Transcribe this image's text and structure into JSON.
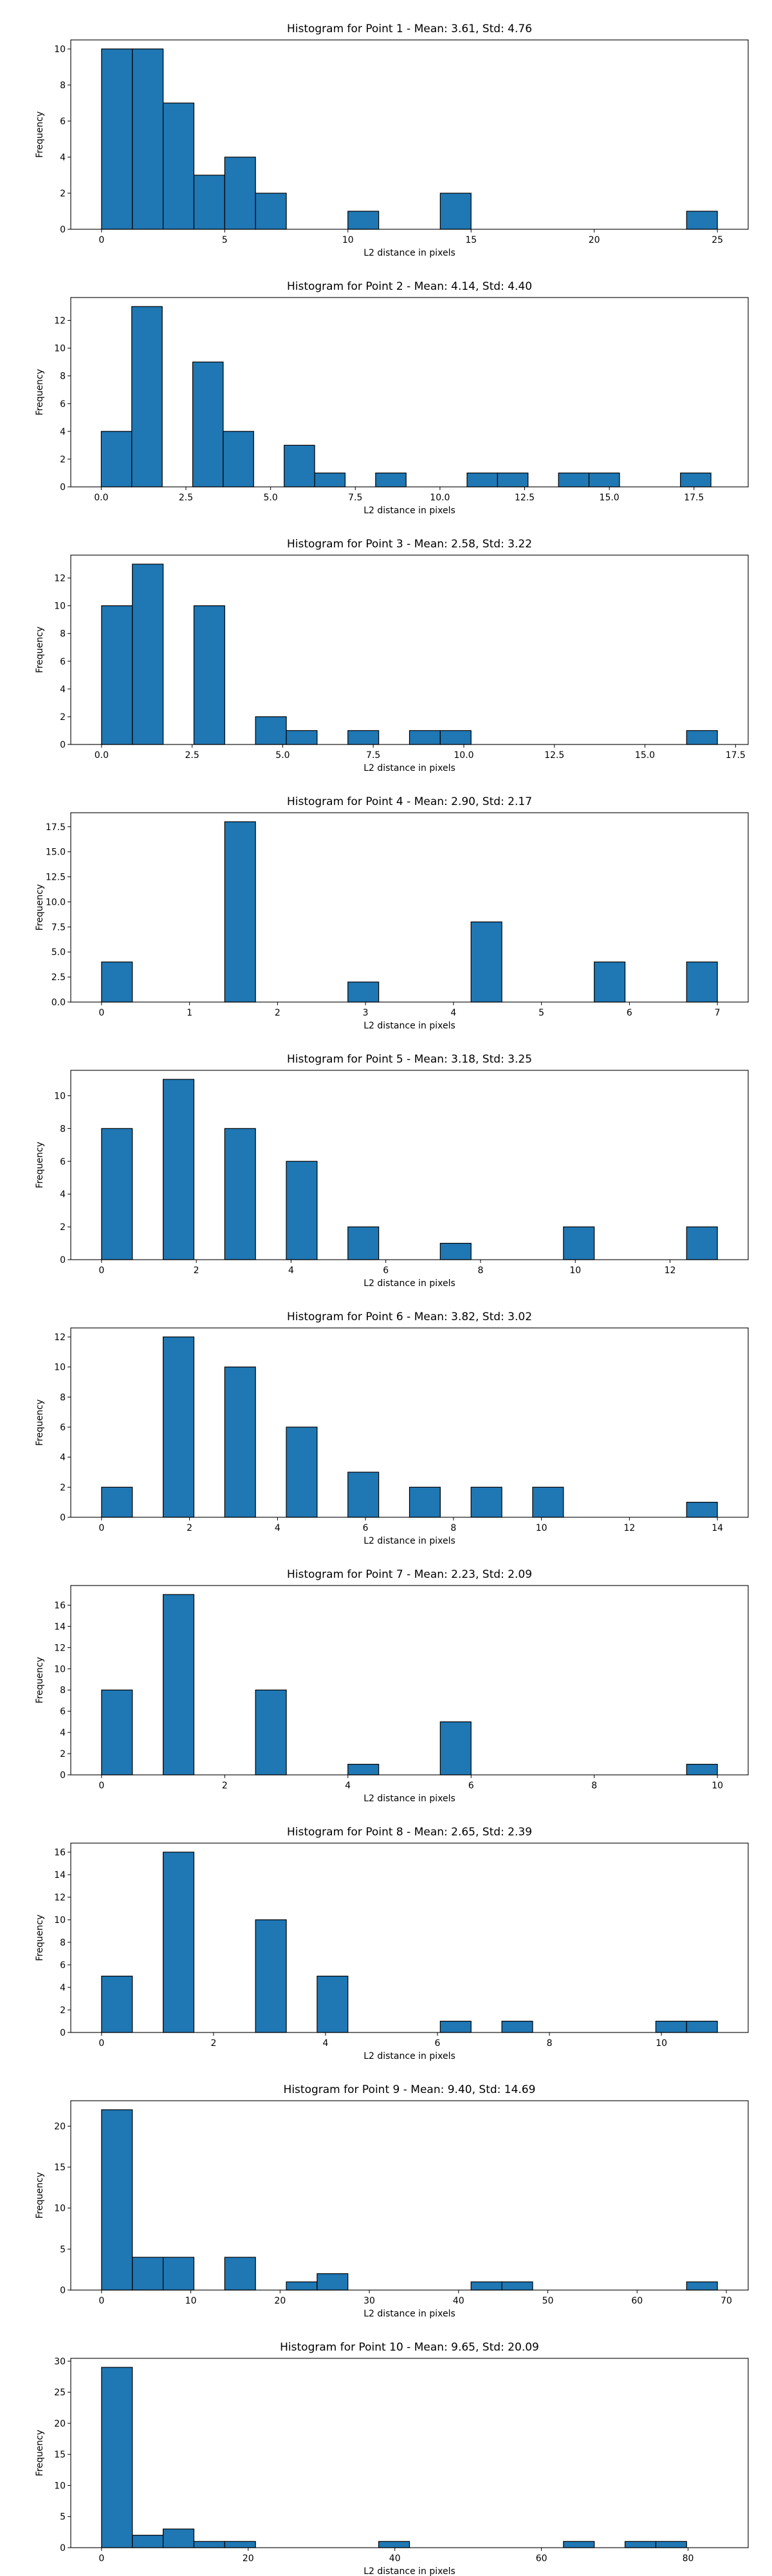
{
  "chart_data": [
    {
      "type": "bar",
      "title": "Histogram for Point 1 - Mean: 3.61, Std: 4.76",
      "xlabel": "L2 distance in pixels",
      "ylabel": "Frequency",
      "xlim": [
        -1.25,
        26.25
      ],
      "ylim": [
        0,
        10.5
      ],
      "xticks": [
        0,
        5,
        10,
        15,
        20,
        25
      ],
      "xtick_labels": [
        "0",
        "5",
        "10",
        "15",
        "20",
        "25"
      ],
      "yticks": [
        0,
        2,
        4,
        6,
        8,
        10
      ],
      "ytick_labels": [
        "0",
        "2",
        "4",
        "6",
        "8",
        "10"
      ],
      "bin_edges": [
        0.0,
        1.25,
        2.5,
        3.75,
        5.0,
        6.25,
        7.5,
        8.75,
        10.0,
        11.25,
        12.5,
        13.75,
        15.0,
        16.25,
        17.5,
        18.75,
        20.0,
        21.25,
        22.5,
        23.75,
        25.0
      ],
      "values": [
        10,
        10,
        7,
        3,
        4,
        2,
        0,
        0,
        1,
        0,
        0,
        2,
        0,
        0,
        0,
        0,
        0,
        0,
        0,
        1
      ],
      "grid": false
    },
    {
      "type": "bar",
      "title": "Histogram for Point 2 - Mean: 4.14, Std: 4.40",
      "xlabel": "L2 distance in pixels",
      "ylabel": "Frequency",
      "xlim": [
        -0.9,
        19.1
      ],
      "ylim": [
        0,
        13.65
      ],
      "xticks": [
        0,
        2.5,
        5,
        7.5,
        10,
        12.5,
        15,
        17.5
      ],
      "xtick_labels": [
        "0.0",
        "2.5",
        "5.0",
        "7.5",
        "10.0",
        "12.5",
        "15.0",
        "17.5"
      ],
      "yticks": [
        0,
        2,
        4,
        6,
        8,
        10,
        12
      ],
      "ytick_labels": [
        "0",
        "2",
        "4",
        "6",
        "8",
        "10",
        "12"
      ],
      "bin_edges": [
        0.0,
        0.9,
        1.8,
        2.7,
        3.6,
        4.5,
        5.4,
        6.3,
        7.2,
        8.1,
        9.0,
        9.9,
        10.8,
        11.7,
        12.6,
        13.5,
        14.4,
        15.3,
        16.2,
        17.1,
        18.0
      ],
      "values": [
        4,
        13,
        0,
        9,
        4,
        0,
        3,
        1,
        0,
        1,
        0,
        0,
        1,
        1,
        0,
        1,
        1,
        0,
        0,
        1
      ],
      "grid": false
    },
    {
      "type": "bar",
      "title": "Histogram for Point 3 - Mean: 2.58, Std: 3.22",
      "xlabel": "L2 distance in pixels",
      "ylabel": "Frequency",
      "xlim": [
        -0.85,
        17.85
      ],
      "ylim": [
        0,
        13.65
      ],
      "xticks": [
        0,
        2.5,
        5,
        7.5,
        10,
        12.5,
        15,
        17.5
      ],
      "xtick_labels": [
        "0.0",
        "2.5",
        "5.0",
        "7.5",
        "10.0",
        "12.5",
        "15.0",
        "17.5"
      ],
      "yticks": [
        0,
        2,
        4,
        6,
        8,
        10,
        12
      ],
      "ytick_labels": [
        "0",
        "2",
        "4",
        "6",
        "8",
        "10",
        "12"
      ],
      "bin_edges": [
        0.0,
        0.85,
        1.7,
        2.55,
        3.4,
        4.25,
        5.1,
        5.95,
        6.8,
        7.65,
        8.5,
        9.35,
        10.2,
        11.05,
        11.9,
        12.75,
        13.6,
        14.45,
        15.3,
        16.15,
        17.0
      ],
      "values": [
        10,
        13,
        0,
        10,
        0,
        2,
        1,
        0,
        1,
        0,
        1,
        1,
        0,
        0,
        0,
        0,
        0,
        0,
        0,
        1
      ],
      "grid": false
    },
    {
      "type": "bar",
      "title": "Histogram for Point 4 - Mean: 2.90, Std: 2.17",
      "xlabel": "L2 distance in pixels",
      "ylabel": "Frequency",
      "xlim": [
        -0.35,
        7.35
      ],
      "ylim": [
        0,
        18.9
      ],
      "xticks": [
        0,
        1,
        2,
        3,
        4,
        5,
        6,
        7
      ],
      "xtick_labels": [
        "0",
        "1",
        "2",
        "3",
        "4",
        "5",
        "6",
        "7"
      ],
      "yticks": [
        0,
        2.5,
        5,
        7.5,
        10,
        12.5,
        15,
        17.5
      ],
      "ytick_labels": [
        "0.0",
        "2.5",
        "5.0",
        "7.5",
        "10.0",
        "12.5",
        "15.0",
        "17.5"
      ],
      "bin_edges": [
        0.0,
        0.35,
        0.7,
        1.05,
        1.4,
        1.75,
        2.1,
        2.45,
        2.8,
        3.15,
        3.5,
        3.85,
        4.2,
        4.55,
        4.9,
        5.25,
        5.6,
        5.95,
        6.3,
        6.65,
        7.0
      ],
      "values": [
        4,
        0,
        0,
        0,
        18,
        0,
        0,
        0,
        2,
        0,
        0,
        0,
        8,
        0,
        0,
        0,
        4,
        0,
        0,
        4
      ],
      "grid": false
    },
    {
      "type": "bar",
      "title": "Histogram for Point 5 - Mean: 3.18, Std: 3.25",
      "xlabel": "L2 distance in pixels",
      "ylabel": "Frequency",
      "xlim": [
        -0.65,
        13.65
      ],
      "ylim": [
        0,
        11.55
      ],
      "xticks": [
        0,
        2,
        4,
        6,
        8,
        10,
        12
      ],
      "xtick_labels": [
        "0",
        "2",
        "4",
        "6",
        "8",
        "10",
        "12"
      ],
      "yticks": [
        0,
        2,
        4,
        6,
        8,
        10
      ],
      "ytick_labels": [
        "0",
        "2",
        "4",
        "6",
        "8",
        "10"
      ],
      "bin_edges": [
        0.0,
        0.65,
        1.3,
        1.95,
        2.6,
        3.25,
        3.9,
        4.55,
        5.2,
        5.85,
        6.5,
        7.15,
        7.8,
        8.45,
        9.1,
        9.75,
        10.4,
        11.05,
        11.7,
        12.35,
        13.0
      ],
      "values": [
        8,
        0,
        11,
        0,
        8,
        0,
        6,
        0,
        2,
        0,
        0,
        1,
        0,
        0,
        0,
        2,
        0,
        0,
        0,
        2
      ],
      "grid": false
    },
    {
      "type": "bar",
      "title": "Histogram for Point 6 - Mean: 3.82, Std: 3.02",
      "xlabel": "L2 distance in pixels",
      "ylabel": "Frequency",
      "xlim": [
        -0.7,
        14.7
      ],
      "ylim": [
        0,
        12.6
      ],
      "xticks": [
        0,
        2,
        4,
        6,
        8,
        10,
        12,
        14
      ],
      "xtick_labels": [
        "0",
        "2",
        "4",
        "6",
        "8",
        "10",
        "12",
        "14"
      ],
      "yticks": [
        0,
        2,
        4,
        6,
        8,
        10,
        12
      ],
      "ytick_labels": [
        "0",
        "2",
        "4",
        "6",
        "8",
        "10",
        "12"
      ],
      "bin_edges": [
        0.0,
        0.7,
        1.4,
        2.1,
        2.8,
        3.5,
        4.2,
        4.9,
        5.6,
        6.3,
        7.0,
        7.7,
        8.4,
        9.1,
        9.8,
        10.5,
        11.2,
        11.9,
        12.6,
        13.3,
        14.0
      ],
      "values": [
        2,
        0,
        12,
        0,
        10,
        0,
        6,
        0,
        3,
        0,
        2,
        0,
        2,
        0,
        2,
        0,
        0,
        0,
        0,
        1
      ],
      "grid": false
    },
    {
      "type": "bar",
      "title": "Histogram for Point 7 - Mean: 2.23, Std: 2.09",
      "xlabel": "L2 distance in pixels",
      "ylabel": "Frequency",
      "xlim": [
        -0.5,
        10.5
      ],
      "ylim": [
        0,
        17.85
      ],
      "xticks": [
        0,
        2,
        4,
        6,
        8,
        10
      ],
      "xtick_labels": [
        "0",
        "2",
        "4",
        "6",
        "8",
        "10"
      ],
      "yticks": [
        0,
        2,
        4,
        6,
        8,
        10,
        12,
        14,
        16
      ],
      "ytick_labels": [
        "0",
        "2",
        "4",
        "6",
        "8",
        "10",
        "12",
        "14",
        "16"
      ],
      "bin_edges": [
        0.0,
        0.5,
        1.0,
        1.5,
        2.0,
        2.5,
        3.0,
        3.5,
        4.0,
        4.5,
        5.0,
        5.5,
        6.0,
        6.5,
        7.0,
        7.5,
        8.0,
        8.5,
        9.0,
        9.5,
        10.0
      ],
      "values": [
        8,
        0,
        17,
        0,
        0,
        8,
        0,
        0,
        1,
        0,
        0,
        5,
        0,
        0,
        0,
        0,
        0,
        0,
        0,
        1
      ],
      "grid": false
    },
    {
      "type": "bar",
      "title": "Histogram for Point 8 - Mean: 2.65, Std: 2.39",
      "xlabel": "L2 distance in pixels",
      "ylabel": "Frequency",
      "xlim": [
        -0.55,
        11.55
      ],
      "ylim": [
        0,
        16.8
      ],
      "xticks": [
        0,
        2,
        4,
        6,
        8,
        10
      ],
      "xtick_labels": [
        "0",
        "2",
        "4",
        "6",
        "8",
        "10"
      ],
      "yticks": [
        0,
        2,
        4,
        6,
        8,
        10,
        12,
        14,
        16
      ],
      "ytick_labels": [
        "0",
        "2",
        "4",
        "6",
        "8",
        "10",
        "12",
        "14",
        "16"
      ],
      "bin_edges": [
        0.0,
        0.55,
        1.1,
        1.65,
        2.2,
        2.75,
        3.3,
        3.85,
        4.4,
        4.95,
        5.5,
        6.05,
        6.6,
        7.15,
        7.7,
        8.25,
        8.8,
        9.35,
        9.9,
        10.45,
        11.0
      ],
      "values": [
        5,
        0,
        16,
        0,
        0,
        10,
        0,
        5,
        0,
        0,
        0,
        1,
        0,
        1,
        0,
        0,
        0,
        0,
        1,
        1
      ],
      "grid": false
    },
    {
      "type": "bar",
      "title": "Histogram for Point 9 - Mean: 9.40, Std: 14.69",
      "xlabel": "L2 distance in pixels",
      "ylabel": "Frequency",
      "xlim": [
        -3.45,
        72.45
      ],
      "ylim": [
        0,
        23.1
      ],
      "xticks": [
        0,
        10,
        20,
        30,
        40,
        50,
        60,
        70
      ],
      "xtick_labels": [
        "0",
        "10",
        "20",
        "30",
        "40",
        "50",
        "60",
        "70"
      ],
      "yticks": [
        0,
        5,
        10,
        15,
        20
      ],
      "ytick_labels": [
        "0",
        "5",
        "10",
        "15",
        "20"
      ],
      "bin_edges": [
        0.0,
        3.45,
        6.9,
        10.35,
        13.8,
        17.25,
        20.7,
        24.15,
        27.6,
        31.05,
        34.5,
        37.95,
        41.4,
        44.85,
        48.3,
        51.75,
        55.2,
        58.65,
        62.1,
        65.55,
        69.0
      ],
      "values": [
        22,
        4,
        4,
        0,
        4,
        0,
        1,
        2,
        0,
        0,
        0,
        0,
        1,
        1,
        0,
        0,
        0,
        0,
        0,
        1
      ],
      "grid": false
    },
    {
      "type": "bar",
      "title": "Histogram for Point 10 - Mean: 9.65, Std: 20.09",
      "xlabel": "L2 distance in pixels",
      "ylabel": "Frequency",
      "xlim": [
        -4.2,
        88.2
      ],
      "ylim": [
        0,
        30.45
      ],
      "xticks": [
        0,
        20,
        40,
        60,
        80
      ],
      "xtick_labels": [
        "0",
        "20",
        "40",
        "60",
        "80"
      ],
      "yticks": [
        0,
        5,
        10,
        15,
        20,
        25,
        30
      ],
      "ytick_labels": [
        "0",
        "5",
        "10",
        "15",
        "20",
        "25",
        "30"
      ],
      "bin_edges": [
        0.0,
        4.2,
        8.4,
        12.6,
        16.8,
        21.0,
        25.2,
        29.4,
        33.6,
        37.8,
        42.0,
        46.2,
        50.4,
        54.6,
        58.8,
        63.0,
        67.2,
        71.4,
        75.6,
        79.8,
        84.0
      ],
      "values": [
        29,
        2,
        3,
        1,
        1,
        0,
        0,
        0,
        0,
        1,
        0,
        0,
        0,
        0,
        0,
        1,
        0,
        1,
        1,
        0
      ],
      "grid": false
    }
  ]
}
